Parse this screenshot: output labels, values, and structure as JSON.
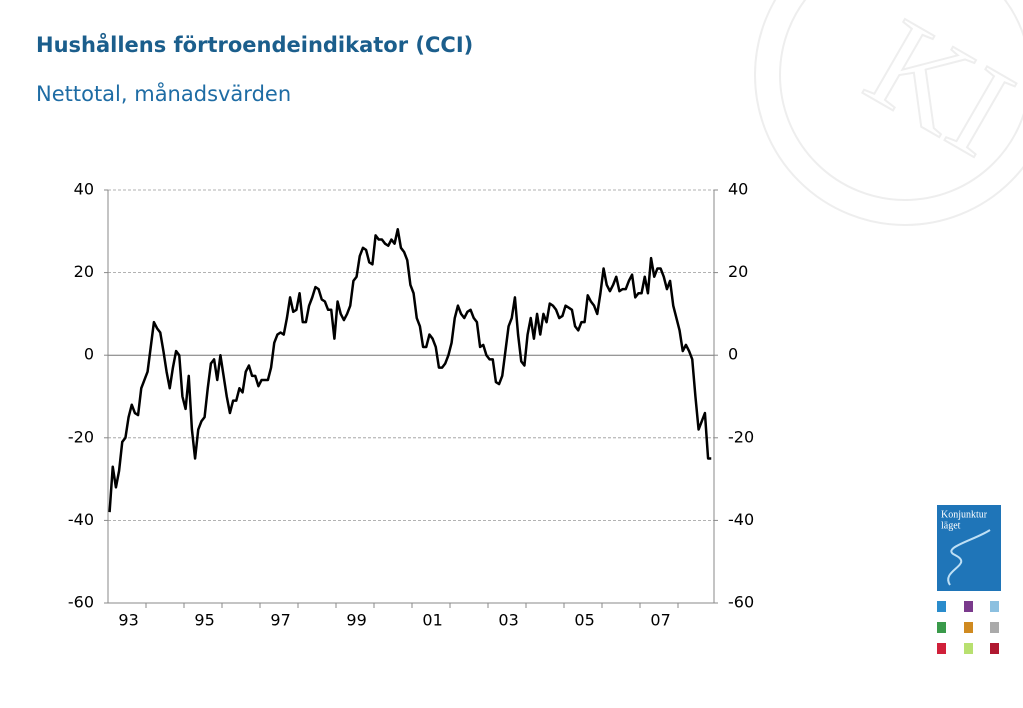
{
  "chart_data": {
    "type": "line",
    "title": "Hushållens förtroendeindikator (CCI)",
    "subtitle": "Nettotal, månadsvärden",
    "categories": [
      null,
      null,
      null,
      null,
      null,
      null,
      "93",
      null,
      null,
      null,
      null,
      null,
      null,
      null,
      null,
      null,
      null,
      null,
      null,
      null,
      null,
      null,
      null,
      null,
      null,
      null,
      null,
      null,
      null,
      null,
      "95",
      null,
      null,
      null,
      null,
      null,
      null,
      null,
      null,
      null,
      null,
      null,
      null,
      null,
      null,
      null,
      null,
      null,
      null,
      null,
      null,
      null,
      null,
      null,
      "97",
      null,
      null,
      null,
      null,
      null,
      null,
      null,
      null,
      null,
      null,
      null,
      null,
      null,
      null,
      null,
      null,
      null,
      null,
      null,
      null,
      null,
      null,
      null,
      "99",
      null,
      null,
      null,
      null,
      null,
      null,
      null,
      null,
      null,
      null,
      null,
      null,
      null,
      null,
      null,
      null,
      null,
      null,
      null,
      null,
      null,
      null,
      null,
      "01",
      null,
      null,
      null,
      null,
      null,
      null,
      null,
      null,
      null,
      null,
      null,
      null,
      null,
      null,
      null,
      null,
      null,
      null,
      null,
      null,
      null,
      null,
      null,
      "03",
      null,
      null,
      null,
      null,
      null,
      null,
      null,
      null,
      null,
      null,
      null,
      null,
      null,
      null,
      null,
      null,
      null,
      null,
      null,
      null,
      null,
      null,
      null,
      "05",
      null,
      null,
      null,
      null,
      null,
      null,
      null,
      null,
      null,
      null,
      null,
      null,
      null,
      null,
      null,
      null,
      null,
      null,
      null,
      null,
      null,
      null,
      null,
      "07",
      null,
      null,
      null,
      null,
      null,
      null,
      null,
      null,
      null,
      null,
      null,
      null,
      null,
      null,
      null,
      null
    ],
    "series": [
      {
        "name": "CCI",
        "color": "#000000",
        "values": [
          -38,
          -27,
          -32,
          -28,
          -21,
          -20,
          -15,
          -12,
          -14,
          -14.5,
          -8,
          -6,
          -4,
          2,
          8,
          6.5,
          5.5,
          1,
          -4,
          -8,
          -3,
          1,
          0,
          -10,
          -13,
          -5,
          -18,
          -25,
          -18,
          -16,
          -15,
          -8,
          -2,
          -1,
          -6,
          0,
          -5,
          -10,
          -14,
          -11,
          -11,
          -8,
          -9,
          -4,
          -2.5,
          -5,
          -5,
          -7.5,
          -6,
          -6,
          -6,
          -3,
          3,
          5,
          5.5,
          5,
          9,
          14,
          10.5,
          11,
          15,
          8,
          8,
          12,
          14,
          16.5,
          16,
          13.5,
          13,
          11,
          11,
          4,
          13,
          10,
          8.5,
          10,
          12,
          18,
          19,
          24,
          26,
          25.5,
          22.5,
          22,
          29,
          28,
          28,
          27,
          26.5,
          28,
          27,
          30.5,
          26,
          25,
          23,
          17,
          15,
          9,
          7,
          2,
          2,
          5,
          4,
          2,
          -3,
          -3,
          -2,
          0,
          3,
          9,
          12,
          10,
          9,
          10.5,
          11,
          9,
          8,
          2,
          2.5,
          0,
          -1,
          -1,
          -6.5,
          -7,
          -5,
          1,
          7,
          9,
          14,
          5,
          -1.5,
          -2.5,
          5,
          9,
          4,
          10,
          5,
          10,
          8,
          12.5,
          12,
          11,
          9,
          9.5,
          12,
          11.5,
          11,
          7,
          6,
          8,
          8,
          14.5,
          13,
          12,
          10,
          15,
          21,
          17,
          15.5,
          17,
          19,
          15.5,
          16,
          16,
          18,
          19.5,
          14,
          15,
          15,
          19,
          15,
          23.5,
          19,
          21,
          21,
          19,
          16,
          18,
          12,
          9,
          6,
          1,
          2.5,
          1,
          -1,
          -10,
          -18,
          -16,
          -14,
          -25,
          -25
        ]
      }
    ],
    "ylim": [
      -60,
      40
    ],
    "yticks": [
      -60,
      -40,
      -20,
      0,
      20,
      40
    ],
    "y2lim": [
      -60,
      40
    ],
    "y2ticks": [
      -60,
      -40,
      -20,
      0,
      20,
      40
    ],
    "grid": true
  }
}
